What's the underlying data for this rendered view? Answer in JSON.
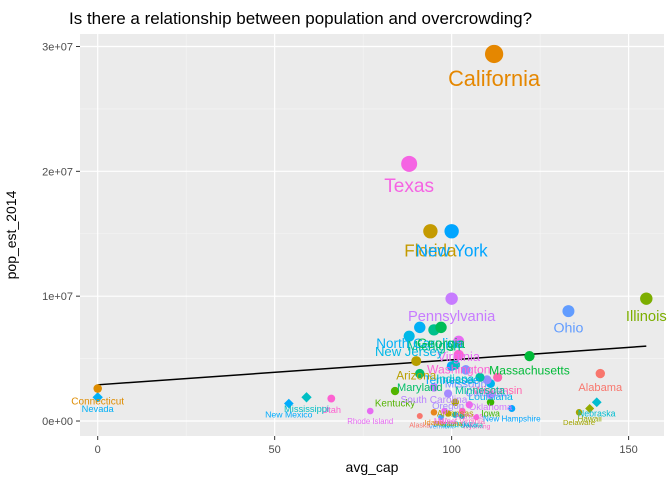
{
  "chart_data": {
    "type": "scatter",
    "title": "Is there a relationship between population and overcrowding?",
    "xlabel": "avg_cap",
    "ylabel": "pop_est_2014",
    "xlim": [
      -5,
      160
    ],
    "ylim": [
      -1200000,
      31000000
    ],
    "x_ticks": [
      0,
      50,
      100,
      150
    ],
    "x_tick_labels": [
      "0",
      "50",
      "100",
      "150"
    ],
    "y_ticks": [
      0,
      10000000,
      20000000,
      30000000
    ],
    "y_tick_labels": [
      "0e+00",
      "1e+07",
      "2e+07",
      "3e+07"
    ],
    "grid": true,
    "panel_background": "#ebebeb",
    "trend_line": {
      "x": [
        0,
        155
      ],
      "y": [
        2900000,
        6000000
      ],
      "color": "#000000"
    },
    "points": [
      {
        "label": "California",
        "x": 112,
        "y": 29400000,
        "color": "#e58700"
      },
      {
        "label": "Texas",
        "x": 88,
        "y": 20600000,
        "color": "#f564e3"
      },
      {
        "label": "Florida",
        "x": 94,
        "y": 15200000,
        "color": "#c49a00"
      },
      {
        "label": "New York",
        "x": 100,
        "y": 15200000,
        "color": "#00a5ff"
      },
      {
        "label": "Illinois",
        "x": 155,
        "y": 9800000,
        "color": "#7cae00"
      },
      {
        "label": "Pennsylvania",
        "x": 100,
        "y": 9800000,
        "color": "#c77cff"
      },
      {
        "label": "Ohio",
        "x": 133,
        "y": 8800000,
        "color": "#619cff"
      },
      {
        "label": "North Carolina",
        "x": 91,
        "y": 7500000,
        "color": "#00b0f6"
      },
      {
        "label": "Georgia",
        "x": 97,
        "y": 7500000,
        "color": "#00bc56"
      },
      {
        "label": "Michigan",
        "x": 95,
        "y": 7300000,
        "color": "#00c08b"
      },
      {
        "label": "New Jersey",
        "x": 88,
        "y": 6800000,
        "color": "#00b8e7"
      },
      {
        "label": "Virginia",
        "x": 102,
        "y": 6400000,
        "color": "#e76bf3"
      },
      {
        "label": "Washington",
        "x": 102,
        "y": 5300000,
        "color": "#fc61d5"
      },
      {
        "label": "Massachusetts",
        "x": 122,
        "y": 5200000,
        "color": "#00ba38"
      },
      {
        "label": "Arizona",
        "x": 90,
        "y": 4800000,
        "color": "#b79f00"
      },
      {
        "label": "Indiana",
        "x": 101,
        "y": 4500000,
        "color": "#00bfc4"
      },
      {
        "label": "Tennessee",
        "x": 100,
        "y": 4400000,
        "color": "#00a9ff"
      },
      {
        "label": "Missouri",
        "x": 104,
        "y": 4100000,
        "color": "#8494ff"
      },
      {
        "label": "Wisconsin",
        "x": 113,
        "y": 3500000,
        "color": "#ff65ae"
      },
      {
        "label": "Maryland",
        "x": 91,
        "y": 3800000,
        "color": "#00be67"
      },
      {
        "label": "Alabama",
        "x": 142,
        "y": 3800000,
        "color": "#f8766d"
      },
      {
        "label": "Minnesota",
        "x": 108,
        "y": 3500000,
        "color": "#00c1a3"
      },
      {
        "label": "Colorado",
        "x": 110,
        "y": 3300000,
        "color": "#9590ff"
      },
      {
        "label": "South Carolina",
        "x": 95,
        "y": 2700000,
        "color": "#b983ff"
      },
      {
        "label": "Louisiana",
        "x": 111,
        "y": 3000000,
        "color": "#00b4ef"
      },
      {
        "label": "Kentucky",
        "x": 84,
        "y": 2400000,
        "color": "#53b400"
      },
      {
        "label": "Oregon",
        "x": 99,
        "y": 2200000,
        "color": "#a58aff"
      },
      {
        "label": "Oklahoma",
        "x": 111,
        "y": 2100000,
        "color": "#d376ff"
      },
      {
        "label": "Connecticut",
        "x": 0,
        "y": 2600000,
        "color": "#de8c00"
      },
      {
        "label": "Iowa",
        "x": 111,
        "y": 1500000,
        "color": "#39b600"
      },
      {
        "label": "Mississippi",
        "x": 59,
        "y": 1900000,
        "color": "#00bfc4"
      },
      {
        "label": "Arkansas",
        "x": 101,
        "y": 1500000,
        "color": "#aea200"
      },
      {
        "label": "Utah",
        "x": 66,
        "y": 1800000,
        "color": "#fd61d1"
      },
      {
        "label": "Nevada",
        "x": 0,
        "y": 1900000,
        "color": "#00b0f6"
      },
      {
        "label": "Kansas",
        "x": 105,
        "y": 1300000,
        "color": "#f066ea"
      },
      {
        "label": "New Mexico",
        "x": 54,
        "y": 1400000,
        "color": "#00abfd"
      },
      {
        "label": "Nebraska",
        "x": 141,
        "y": 1500000,
        "color": "#00bdd0"
      },
      {
        "label": "West Virginia",
        "x": 103,
        "y": 800000,
        "color": "#ff62bc"
      },
      {
        "label": "Idaho",
        "x": 95,
        "y": 700000,
        "color": "#e7861b"
      },
      {
        "label": "Hawaii",
        "x": 139,
        "y": 1000000,
        "color": "#93aa00"
      },
      {
        "label": "New Hampshire",
        "x": 117,
        "y": 1000000,
        "color": "#00a6ff"
      },
      {
        "label": "Maine",
        "x": 98,
        "y": 800000,
        "color": "#ec69ef"
      },
      {
        "label": "Rhode Island",
        "x": 77,
        "y": 800000,
        "color": "#e76bf3"
      },
      {
        "label": "Montana",
        "x": 99,
        "y": 600000,
        "color": "#c09b00"
      },
      {
        "label": "Delaware",
        "x": 136,
        "y": 700000,
        "color": "#a3a500"
      },
      {
        "label": "South Dakota",
        "x": 101,
        "y": 500000,
        "color": "#00b6eb"
      },
      {
        "label": "Alaska",
        "x": 91,
        "y": 400000,
        "color": "#f8766d"
      },
      {
        "label": "North Dakota",
        "x": 103,
        "y": 400000,
        "color": "#00c0b8"
      },
      {
        "label": "Vermont",
        "x": 97,
        "y": 300000,
        "color": "#4aa2ff"
      },
      {
        "label": "Wyoming",
        "x": 107,
        "y": 300000,
        "color": "#fd61d1"
      }
    ]
  }
}
